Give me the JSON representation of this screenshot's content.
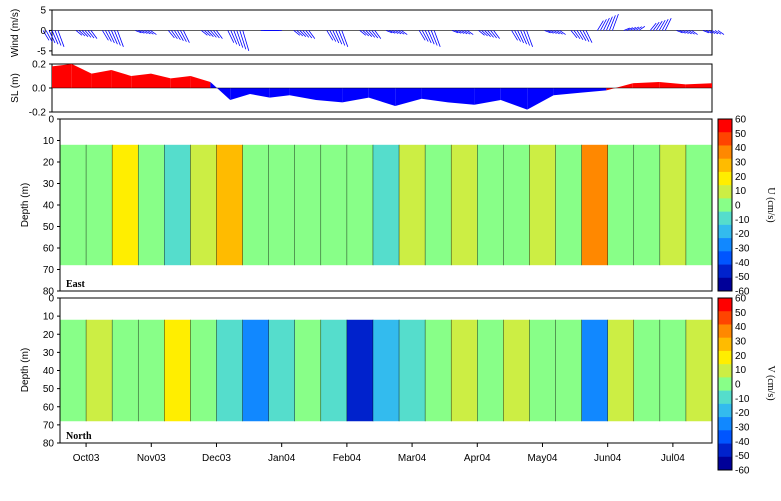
{
  "chart_data": [
    {
      "type": "line",
      "panel": "wind",
      "ylabel": "Wind (m/s)",
      "ylim": [
        -6,
        5
      ],
      "yticks": [
        -5,
        0,
        5
      ],
      "x": [
        0,
        0.05,
        0.09,
        0.14,
        0.19,
        0.24,
        0.28,
        0.33,
        0.38,
        0.43,
        0.48,
        0.52,
        0.57,
        0.62,
        0.66,
        0.71,
        0.76,
        0.8,
        0.84,
        0.88,
        0.92,
        0.96,
        1.0
      ],
      "values": [
        -4,
        -2,
        -4,
        -1,
        -3,
        -2,
        -5,
        0,
        -2,
        -4,
        -2,
        -1,
        -4,
        -1,
        -2,
        -4,
        -1,
        -3,
        4,
        1,
        3,
        -1,
        -1
      ],
      "color": "#0000ff"
    },
    {
      "type": "area",
      "panel": "sea-level",
      "ylabel": "SL (m)",
      "ylim": [
        -0.2,
        0.2
      ],
      "yticks": [
        "0.2",
        "0.0",
        "-0.2"
      ],
      "x": [
        0,
        0.03,
        0.06,
        0.09,
        0.12,
        0.15,
        0.18,
        0.21,
        0.24,
        0.27,
        0.3,
        0.33,
        0.36,
        0.4,
        0.44,
        0.48,
        0.52,
        0.56,
        0.6,
        0.64,
        0.68,
        0.72,
        0.76,
        0.8,
        0.84,
        0.88,
        0.92,
        0.96,
        1.0
      ],
      "values": [
        0.18,
        0.2,
        0.12,
        0.15,
        0.1,
        0.12,
        0.08,
        0.1,
        0.05,
        -0.1,
        -0.05,
        -0.08,
        -0.06,
        -0.1,
        -0.12,
        -0.08,
        -0.15,
        -0.09,
        -0.12,
        -0.14,
        -0.1,
        -0.18,
        -0.06,
        -0.04,
        -0.02,
        0.04,
        0.05,
        0.03,
        0.04
      ],
      "positive_color": "#ff0000",
      "negative_color": "#0000ff"
    },
    {
      "type": "heatmap",
      "panel": "east",
      "tag": "East",
      "ylabel": "Depth (m)",
      "ylim": [
        80,
        0
      ],
      "yticks": [
        0,
        10,
        20,
        30,
        40,
        50,
        60,
        70,
        80
      ],
      "depth_range": [
        12,
        68
      ],
      "colorbar_label": "U (cm/s)",
      "columns": [
        0,
        -5,
        20,
        0,
        -15,
        5,
        30,
        0,
        0,
        0,
        0,
        0,
        -10,
        5,
        0,
        5,
        0,
        0,
        5,
        -5,
        35,
        0,
        0,
        5,
        0
      ]
    },
    {
      "type": "heatmap",
      "panel": "north",
      "tag": "North",
      "ylabel": "Depth (m)",
      "ylim": [
        80,
        0
      ],
      "yticks": [
        0,
        10,
        20,
        30,
        40,
        50,
        60,
        70,
        80
      ],
      "depth_range": [
        12,
        68
      ],
      "colorbar_label": "V (cm/s)",
      "columns": [
        0,
        5,
        0,
        0,
        15,
        0,
        -15,
        -35,
        -10,
        0,
        -10,
        -50,
        -20,
        -10,
        0,
        5,
        0,
        10,
        0,
        -5,
        -35,
        10,
        0,
        0,
        5
      ]
    }
  ],
  "time_axis": {
    "labels": [
      "Oct03",
      "Nov03",
      "Dec03",
      "Jan04",
      "Feb04",
      "Mar04",
      "Apr04",
      "May04",
      "Jun04",
      "Jul04"
    ]
  },
  "colorbar": {
    "ticks": [
      60,
      50,
      40,
      30,
      20,
      10,
      0,
      -10,
      -20,
      -30,
      -40,
      -50,
      -60
    ],
    "colors": [
      "#ff0000",
      "#ff4400",
      "#ff8800",
      "#ffbb00",
      "#ffee00",
      "#ccee44",
      "#88ff88",
      "#55ddcc",
      "#33bbee",
      "#1188ff",
      "#0055ff",
      "#0022cc",
      "#000099"
    ]
  },
  "labels": {
    "east_tag": "East",
    "north_tag": "North",
    "wind_ylabel": "Wind (m/s)",
    "sl_ylabel": "SL (m)",
    "east_ylabel": "Depth (m)",
    "north_ylabel": "Depth (m)",
    "east_cb": "U (cm/s)",
    "north_cb": "V (cm/s)"
  }
}
